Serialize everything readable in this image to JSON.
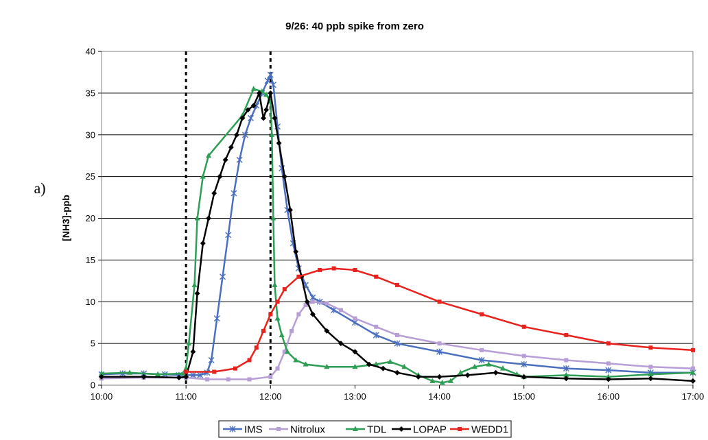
{
  "panel_label": "a)",
  "chart_data": {
    "type": "line",
    "title": "9/26: 40 ppb spike from zero",
    "xlabel": "",
    "ylabel": "[NH3]-ppb",
    "xlim": [
      "10:00",
      "17:00"
    ],
    "ylim": [
      0,
      40
    ],
    "x_ticks": [
      "10:00",
      "11:00",
      "12:00",
      "13:00",
      "14:00",
      "15:00",
      "16:00",
      "17:00"
    ],
    "y_ticks": [
      "0",
      "5",
      "10",
      "15",
      "20",
      "25",
      "30",
      "35",
      "40"
    ],
    "grid": "horizontal",
    "legend_position": "bottom",
    "vertical_markers": [
      "11:00",
      "12:00"
    ],
    "series": [
      {
        "name": "IMS",
        "color": "#4a6fbf",
        "marker": "star",
        "points": [
          [
            "10:00",
            1.3
          ],
          [
            "10:15",
            1.4
          ],
          [
            "10:30",
            1.4
          ],
          [
            "10:45",
            1.3
          ],
          [
            "10:55",
            1.2
          ],
          [
            "11:05",
            1.2
          ],
          [
            "11:10",
            1.2
          ],
          [
            "11:15",
            1.5
          ],
          [
            "11:18",
            3
          ],
          [
            "11:22",
            8
          ],
          [
            "11:26",
            13
          ],
          [
            "11:30",
            18
          ],
          [
            "11:34",
            23
          ],
          [
            "11:38",
            27
          ],
          [
            "11:42",
            30
          ],
          [
            "11:46",
            32
          ],
          [
            "11:50",
            33.5
          ],
          [
            "11:54",
            35
          ],
          [
            "11:58",
            36.5
          ],
          [
            "12:00",
            37.2
          ],
          [
            "12:02",
            36
          ],
          [
            "12:05",
            31
          ],
          [
            "12:08",
            26
          ],
          [
            "12:12",
            21
          ],
          [
            "12:16",
            17
          ],
          [
            "12:20",
            14
          ],
          [
            "12:25",
            12
          ],
          [
            "12:30",
            10.5
          ],
          [
            "12:35",
            10
          ],
          [
            "12:45",
            9
          ],
          [
            "13:00",
            7.5
          ],
          [
            "13:15",
            6
          ],
          [
            "13:30",
            5
          ],
          [
            "14:00",
            4
          ],
          [
            "14:30",
            3
          ],
          [
            "15:00",
            2.5
          ],
          [
            "15:30",
            2
          ],
          [
            "16:00",
            1.8
          ],
          [
            "16:30",
            1.5
          ],
          [
            "17:00",
            1.5
          ]
        ]
      },
      {
        "name": "Nitrolux",
        "color": "#b89ed6",
        "marker": "square",
        "points": [
          [
            "10:00",
            0.8
          ],
          [
            "10:30",
            0.9
          ],
          [
            "11:00",
            0.9
          ],
          [
            "11:15",
            0.7
          ],
          [
            "11:30",
            0.7
          ],
          [
            "11:45",
            0.7
          ],
          [
            "12:00",
            1
          ],
          [
            "12:05",
            2
          ],
          [
            "12:10",
            4
          ],
          [
            "12:15",
            6.5
          ],
          [
            "12:20",
            8.5
          ],
          [
            "12:25",
            9.6
          ],
          [
            "12:30",
            10
          ],
          [
            "12:40",
            9.8
          ],
          [
            "12:50",
            9
          ],
          [
            "13:00",
            8
          ],
          [
            "13:15",
            7
          ],
          [
            "13:30",
            6
          ],
          [
            "14:00",
            5
          ],
          [
            "14:30",
            4.2
          ],
          [
            "15:00",
            3.5
          ],
          [
            "15:30",
            3
          ],
          [
            "16:00",
            2.6
          ],
          [
            "16:30",
            2.2
          ],
          [
            "17:00",
            2
          ]
        ]
      },
      {
        "name": "TDL",
        "color": "#2e9e55",
        "marker": "triangle",
        "points": [
          [
            "10:00",
            1.4
          ],
          [
            "10:20",
            1.5
          ],
          [
            "10:40",
            1.3
          ],
          [
            "10:58",
            1.4
          ],
          [
            "11:00",
            2
          ],
          [
            "11:02",
            5
          ],
          [
            "11:06",
            12
          ],
          [
            "11:08",
            20
          ],
          [
            "11:12",
            25
          ],
          [
            "11:16",
            27.5
          ],
          [
            "11:40",
            32.3
          ],
          [
            "11:48",
            35.5
          ],
          [
            "11:54",
            35.2
          ],
          [
            "11:57",
            34.8
          ],
          [
            "12:00",
            34
          ],
          [
            "12:01",
            30
          ],
          [
            "12:02",
            20
          ],
          [
            "12:03",
            12
          ],
          [
            "12:05",
            8
          ],
          [
            "12:08",
            6
          ],
          [
            "12:12",
            4
          ],
          [
            "12:18",
            3
          ],
          [
            "12:25",
            2.5
          ],
          [
            "12:40",
            2.2
          ],
          [
            "13:00",
            2.2
          ],
          [
            "13:15",
            2.5
          ],
          [
            "13:25",
            2.8
          ],
          [
            "13:35",
            2.2
          ],
          [
            "13:45",
            1.2
          ],
          [
            "13:55",
            0.5
          ],
          [
            "14:02",
            0.3
          ],
          [
            "14:08",
            0.5
          ],
          [
            "14:15",
            1.5
          ],
          [
            "14:25",
            2.2
          ],
          [
            "14:35",
            2.5
          ],
          [
            "14:45",
            2
          ],
          [
            "14:55",
            1.3
          ],
          [
            "15:00",
            1
          ],
          [
            "15:30",
            1.2
          ],
          [
            "16:00",
            1
          ],
          [
            "16:30",
            1.3
          ],
          [
            "17:00",
            1.5
          ]
        ]
      },
      {
        "name": "LOPAP",
        "color": "#000000",
        "marker": "diamond",
        "points": [
          [
            "10:00",
            1
          ],
          [
            "10:30",
            1
          ],
          [
            "10:55",
            0.9
          ],
          [
            "11:00",
            1
          ],
          [
            "11:05",
            4
          ],
          [
            "11:08",
            11
          ],
          [
            "11:12",
            17
          ],
          [
            "11:16",
            20
          ],
          [
            "11:20",
            23
          ],
          [
            "11:24",
            25
          ],
          [
            "11:28",
            27
          ],
          [
            "11:32",
            28.5
          ],
          [
            "11:36",
            30
          ],
          [
            "11:40",
            32
          ],
          [
            "11:44",
            33
          ],
          [
            "11:48",
            33.5
          ],
          [
            "11:52",
            35
          ],
          [
            "11:55",
            32
          ],
          [
            "11:57",
            33
          ],
          [
            "12:00",
            35
          ],
          [
            "12:03",
            32
          ],
          [
            "12:06",
            29
          ],
          [
            "12:10",
            25
          ],
          [
            "12:14",
            21
          ],
          [
            "12:18",
            16
          ],
          [
            "12:22",
            13
          ],
          [
            "12:26",
            10
          ],
          [
            "12:30",
            8.5
          ],
          [
            "12:40",
            6.5
          ],
          [
            "12:50",
            5
          ],
          [
            "13:00",
            4
          ],
          [
            "13:10",
            2.5
          ],
          [
            "13:20",
            2
          ],
          [
            "13:30",
            1.5
          ],
          [
            "13:45",
            1
          ],
          [
            "14:00",
            1
          ],
          [
            "14:20",
            1.2
          ],
          [
            "14:40",
            1.5
          ],
          [
            "15:00",
            1
          ],
          [
            "15:30",
            0.8
          ],
          [
            "16:00",
            0.7
          ],
          [
            "16:30",
            0.8
          ],
          [
            "17:00",
            0.5
          ]
        ]
      },
      {
        "name": "WEDD1",
        "color": "#e8231e",
        "marker": "square",
        "points": [
          [
            "11:00",
            1.6
          ],
          [
            "11:20",
            1.6
          ],
          [
            "11:35",
            2
          ],
          [
            "11:45",
            3
          ],
          [
            "11:50",
            4.5
          ],
          [
            "11:55",
            6.5
          ],
          [
            "12:00",
            8.5
          ],
          [
            "12:05",
            10
          ],
          [
            "12:10",
            11.5
          ],
          [
            "12:20",
            13
          ],
          [
            "12:35",
            13.8
          ],
          [
            "12:45",
            14
          ],
          [
            "13:00",
            13.8
          ],
          [
            "13:15",
            13
          ],
          [
            "13:30",
            12
          ],
          [
            "14:00",
            10
          ],
          [
            "14:30",
            8.5
          ],
          [
            "15:00",
            7
          ],
          [
            "15:30",
            6
          ],
          [
            "16:00",
            5
          ],
          [
            "16:30",
            4.5
          ],
          [
            "17:00",
            4.2
          ]
        ]
      }
    ]
  }
}
